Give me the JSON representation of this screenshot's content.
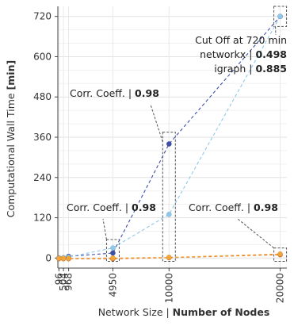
{
  "chart_data": {
    "type": "line",
    "xlabel": "Network Size | ",
    "xlabel_bold": "Number of Nodes",
    "ylabel": "Computational Wall Time ",
    "ylabel_bold": "[min]",
    "xlim": [
      0,
      20600
    ],
    "ylim": [
      -30,
      750
    ],
    "x_ticks": [
      96,
      504,
      968,
      4950,
      10000,
      20000
    ],
    "y_ticks": [
      0,
      120,
      240,
      360,
      480,
      600,
      720
    ],
    "grid": true,
    "series": [
      {
        "name": "networkx",
        "color": "#3e4fa8",
        "style": "dashed",
        "x": [
          96,
          504,
          968,
          4950,
          10000,
          20000
        ],
        "y": [
          0,
          0,
          5,
          15,
          340,
          720
        ]
      },
      {
        "name": "igraph",
        "color": "#8ec8ea",
        "style": "dashed",
        "x": [
          96,
          504,
          968,
          4950,
          10000,
          20000
        ],
        "y": [
          0,
          1,
          3,
          30,
          130,
          720
        ]
      },
      {
        "name": "",
        "color": "#e0701e",
        "style": "dashed",
        "x": [
          96,
          504,
          968,
          4950,
          10000,
          20000
        ],
        "y": [
          -2,
          -2,
          -2,
          -2,
          1,
          10
        ]
      },
      {
        "name": "",
        "color": "#f4a53a",
        "style": "dashed",
        "x": [
          96,
          504,
          968,
          4950,
          10000,
          20000
        ],
        "y": [
          -1,
          -1,
          -1,
          0,
          2,
          12
        ]
      }
    ],
    "annotations": {
      "corr_label": "Corr. Coeff. | ",
      "corr_4950": "0.98",
      "corr_10000": "0.98",
      "corr_20000": "0.98",
      "cutoff_title": "Cut Off at 720 min",
      "cutoff_networkx_label": "networkx | ",
      "cutoff_networkx_value": "0.498",
      "cutoff_igraph_label": "igraph | ",
      "cutoff_igraph_value": "0.885"
    }
  }
}
